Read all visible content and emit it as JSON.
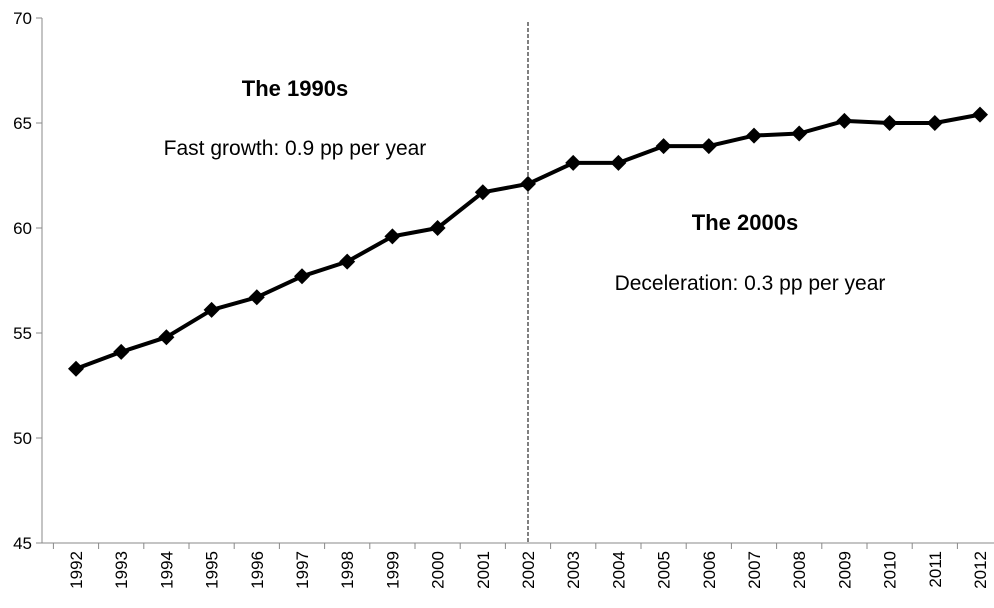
{
  "chart_data": {
    "type": "line",
    "categories": [
      "1992",
      "1993",
      "1994",
      "1995",
      "1996",
      "1997",
      "1998",
      "1999",
      "2000",
      "2001",
      "2002",
      "2003",
      "2004",
      "2005",
      "2006",
      "2007",
      "2008",
      "2009",
      "2010",
      "2011",
      "2012"
    ],
    "series": [
      {
        "name": null,
        "color": "#000000",
        "values": [
          53.3,
          54.1,
          54.8,
          56.1,
          56.7,
          57.7,
          58.4,
          59.6,
          60.0,
          61.7,
          62.1,
          63.1,
          63.1,
          63.9,
          63.9,
          64.4,
          64.5,
          65.1,
          65.0,
          65.0,
          65.4
        ]
      }
    ],
    "ylim": [
      45,
      70
    ],
    "yticks": [
      45,
      50,
      55,
      60,
      65,
      70
    ],
    "grid": false,
    "vline": "2002",
    "annotations": [
      {
        "text": "The 1990s",
        "bold": true
      },
      {
        "text": "Fast growth: 0.9 pp per year",
        "bold": false
      },
      {
        "text": "The 2000s",
        "bold": true
      },
      {
        "text": "Deceleration: 0.3 pp per year",
        "bold": false
      }
    ]
  }
}
